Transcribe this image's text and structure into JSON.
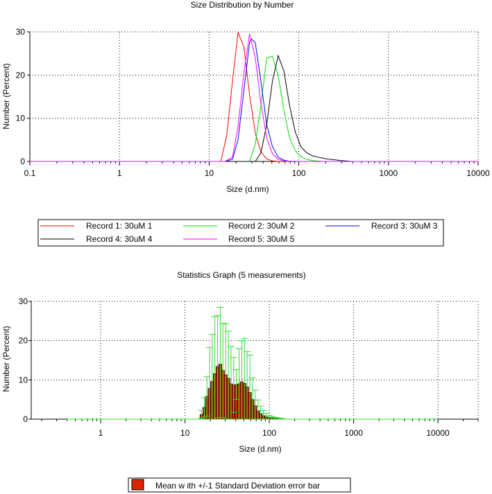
{
  "chart_data": [
    {
      "type": "line",
      "title": "Size Distribution by Number",
      "xlabel": "Size (d.nm)",
      "ylabel": "Number (Percent)",
      "xscale": "log",
      "xlim": [
        0.1,
        10000
      ],
      "ylim": [
        0,
        30
      ],
      "xticks": [
        "0.1",
        "1",
        "10",
        "100",
        "1000",
        "10000"
      ],
      "yticks": [
        "0",
        "10",
        "20",
        "30"
      ],
      "grid": true,
      "series": [
        {
          "name": "Record 1: 30uM 1",
          "color": "#ff0000",
          "x": [
            0.1,
            10,
            13.5,
            15.7,
            18.2,
            21.0,
            24.4,
            28.2,
            32.7,
            37.8,
            43.8,
            50.7,
            58.8,
            68.1,
            100,
            10000
          ],
          "y": [
            0,
            0,
            0,
            6.0,
            18.5,
            29.9,
            26.5,
            15.5,
            6.5,
            2.2,
            0.6,
            0.15,
            0,
            0,
            0,
            0
          ]
        },
        {
          "name": "Record 2: 30uM 2",
          "color": "#00dd00",
          "x": [
            0.1,
            20,
            28.2,
            32.7,
            37.8,
            43.8,
            50.7,
            58.8,
            68.1,
            78.8,
            91.3,
            105.7,
            122.4,
            141.8,
            164.2,
            190.1,
            255,
            400,
            10000
          ],
          "y": [
            0,
            0,
            0,
            4.0,
            13.0,
            23.9,
            24.4,
            20.0,
            12.0,
            5.5,
            2.5,
            1.1,
            0.5,
            0.2,
            0.1,
            0,
            0,
            0,
            0
          ]
        },
        {
          "name": "Record 3: 30uM 3",
          "color": "#0000ff",
          "x": [
            0.1,
            15,
            18.2,
            21.0,
            24.4,
            28.2,
            29.5,
            32.7,
            37.8,
            43.8,
            50.7,
            58.8,
            68.1,
            78.8,
            100,
            10000
          ],
          "y": [
            0,
            0,
            0.5,
            5.0,
            16.5,
            27.5,
            28.4,
            27.5,
            18.5,
            8.5,
            3.5,
            1.0,
            0.3,
            0.05,
            0,
            0
          ]
        },
        {
          "name": "Record 4: 30uM 4",
          "color": "#000000",
          "x": [
            0.1,
            25,
            32.7,
            37.8,
            43.8,
            50.7,
            58.8,
            68.1,
            78.8,
            91.3,
            105.7,
            122.4,
            141.8,
            164.2,
            190.1,
            220.2,
            255,
            295.3,
            342,
            400,
            10000
          ],
          "y": [
            0,
            0,
            0,
            2.0,
            8.5,
            18.5,
            24.5,
            21.0,
            13.0,
            6.8,
            3.4,
            2.0,
            1.3,
            1.0,
            0.7,
            0.5,
            0.35,
            0.2,
            0.1,
            0,
            0
          ]
        },
        {
          "name": "Record 5: 30uM 5",
          "color": "#ff00ff",
          "x": [
            0.1,
            15,
            18.2,
            21.0,
            24.4,
            28.2,
            32.7,
            37.8,
            43.8,
            50.7,
            58.8,
            68.1,
            100,
            10000
          ],
          "y": [
            0,
            0,
            1.0,
            8.0,
            20.5,
            29.5,
            24.0,
            13.5,
            5.5,
            1.8,
            0.5,
            0.1,
            0,
            0
          ]
        }
      ],
      "legend": {
        "position": "below",
        "entries": [
          "Record 1: 30uM 1",
          "Record 2: 30uM 2",
          "Record 3: 30uM 3",
          "Record 4: 30uM 4",
          "Record 5: 30uM 5"
        ]
      }
    },
    {
      "type": "bar",
      "title": "Statistics Graph (5 measurements)",
      "xlabel": "Size (d.nm)",
      "ylabel": "Number (Percent)",
      "xscale": "log",
      "xlim": [
        0.15,
        30000
      ],
      "ylim": [
        0,
        30
      ],
      "xticks": [
        "1",
        "10",
        "100",
        "1000",
        "10000"
      ],
      "yticks": [
        "0",
        "10",
        "20",
        "30"
      ],
      "grid": true,
      "bar_color": "#dd2200",
      "error_color": "#33dd33",
      "baseline_error_range": [
        0.4,
        10000
      ],
      "bars": {
        "x": [
          15.7,
          17.0,
          18.2,
          19.6,
          21.0,
          22.6,
          24.4,
          26.2,
          28.2,
          30.4,
          32.7,
          35.2,
          37.8,
          40.7,
          43.8,
          47.1,
          50.7,
          54.6,
          58.8,
          63.2,
          68.1,
          73.3,
          78.8,
          84.8,
          91.3,
          98.2,
          105.7,
          113.8,
          122.4,
          131.8,
          141.8
        ],
        "mean": [
          1.2,
          3.0,
          5.8,
          7.8,
          9.6,
          11.6,
          13.4,
          14.0,
          12.4,
          11.3,
          10.4,
          9.0,
          8.7,
          8.8,
          9.0,
          9.5,
          9.1,
          8.2,
          6.8,
          5.0,
          3.4,
          2.1,
          1.4,
          0.9,
          0.6,
          0.4,
          0.3,
          0.2,
          0.15,
          0.1,
          0.05
        ],
        "sd": [
          1.0,
          2.5,
          5.0,
          10.5,
          12.0,
          14.5,
          13.0,
          14.5,
          12.0,
          13.0,
          12.0,
          9.5,
          7.0,
          3.8,
          9.0,
          10.5,
          11.5,
          9.0,
          9.5,
          5.5,
          4.0,
          2.8,
          1.9,
          1.3,
          0.9,
          0.6,
          0.4,
          0.3,
          0.25,
          0.2,
          0.1
        ]
      },
      "legend": {
        "position": "below",
        "entries": [
          "Mean w ith +/-1 Standard Deviation error bar"
        ]
      }
    }
  ]
}
